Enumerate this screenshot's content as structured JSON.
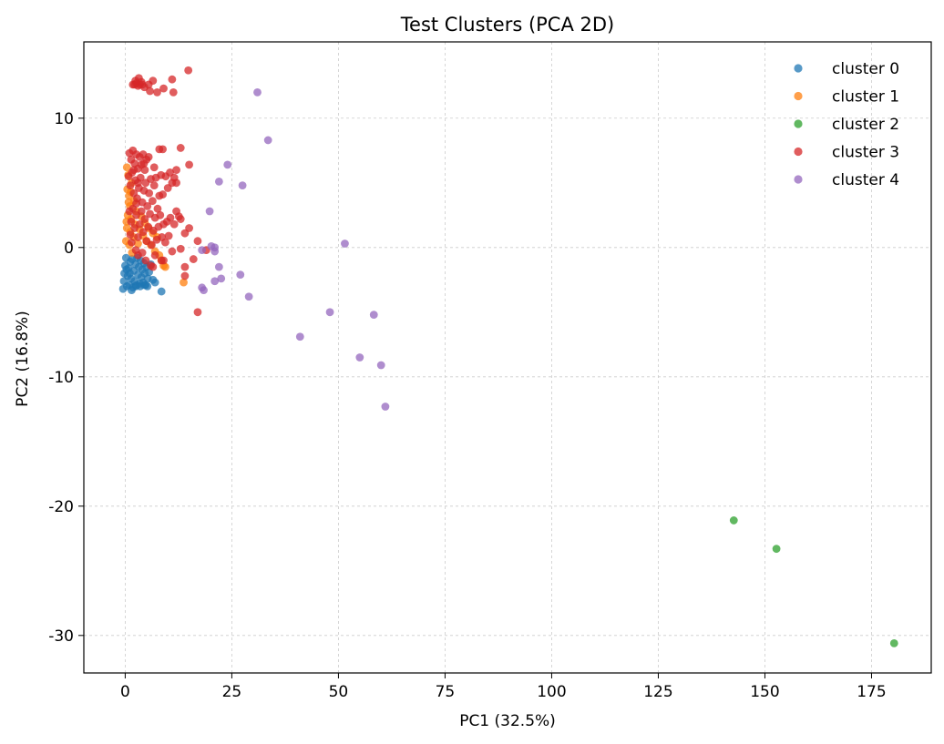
{
  "chart_data": {
    "type": "scatter",
    "title": "Test Clusters (PCA 2D)",
    "xlabel": "PC1 (32.5%)",
    "ylabel": "PC2 (16.8%)",
    "xlim": [
      -9.7,
      189.0
    ],
    "ylim": [
      -32.9,
      15.9
    ],
    "xticks": [
      0,
      25,
      50,
      75,
      100,
      125,
      150,
      175
    ],
    "yticks": [
      10,
      0,
      -10,
      -20,
      -30
    ],
    "grid": true,
    "legend": "top-right",
    "series": [
      {
        "name": "cluster 0",
        "color": "#1f77b4",
        "points": [
          [
            -0.5,
            -3.2
          ],
          [
            -0.3,
            -2.6
          ],
          [
            -0.2,
            -2.0
          ],
          [
            0,
            -1.4
          ],
          [
            0.2,
            -0.8
          ],
          [
            0.4,
            -3.0
          ],
          [
            0.6,
            -2.2
          ],
          [
            0.8,
            -1.6
          ],
          [
            1.0,
            -2.9
          ],
          [
            1.2,
            -1.1
          ],
          [
            1.4,
            -2.4
          ],
          [
            1.6,
            -0.9
          ],
          [
            1.8,
            -3.1
          ],
          [
            2.0,
            -1.8
          ],
          [
            2.2,
            -2.6
          ],
          [
            2.4,
            -1.3
          ],
          [
            2.6,
            -2.9
          ],
          [
            2.8,
            -0.8
          ],
          [
            3.0,
            -2.1
          ],
          [
            3.2,
            -1.5
          ],
          [
            3.4,
            -2.8
          ],
          [
            3.6,
            -1.0
          ],
          [
            3.8,
            -2.3
          ],
          [
            4.0,
            -1.7
          ],
          [
            4.2,
            -2.7
          ],
          [
            4.4,
            -1.2
          ],
          [
            4.6,
            -2.0
          ],
          [
            4.8,
            -2.9
          ],
          [
            5.0,
            -1.5
          ],
          [
            5.3,
            -2.4
          ],
          [
            5.6,
            -1.9
          ],
          [
            6.0,
            -1.3
          ],
          [
            6.5,
            -2.5
          ],
          [
            7.0,
            -2.7
          ],
          [
            8.5,
            -3.4
          ],
          [
            1.5,
            -3.3
          ],
          [
            2.5,
            -3.0
          ],
          [
            0.3,
            -1.7
          ],
          [
            1.1,
            -2.0
          ],
          [
            3.5,
            -3.0
          ],
          [
            4.5,
            -2.9
          ],
          [
            5.2,
            -3.0
          ]
        ]
      },
      {
        "name": "cluster 1",
        "color": "#ff7f0e",
        "points": [
          [
            0.2,
            0.5
          ],
          [
            0.4,
            1.5
          ],
          [
            0.6,
            2.5
          ],
          [
            0.8,
            3.5
          ],
          [
            0.5,
            4.5
          ],
          [
            0.7,
            5.6
          ],
          [
            0.4,
            6.2
          ],
          [
            1.0,
            0.2
          ],
          [
            1.2,
            1.2
          ],
          [
            1.4,
            2.2
          ],
          [
            1.1,
            3.2
          ],
          [
            1.3,
            4.3
          ],
          [
            1.6,
            -0.4
          ],
          [
            2.0,
            0.8
          ],
          [
            2.3,
            1.8
          ],
          [
            2.6,
            2.8
          ],
          [
            3.0,
            0.3
          ],
          [
            3.4,
            1.4
          ],
          [
            3.8,
            2.4
          ],
          [
            4.2,
            0.9
          ],
          [
            4.6,
            1.9
          ],
          [
            5.0,
            0.5
          ],
          [
            5.5,
            1.5
          ],
          [
            6.0,
            0.2
          ],
          [
            6.5,
            1.1
          ],
          [
            7.0,
            -0.3
          ],
          [
            7.5,
            0.8
          ],
          [
            8.0,
            -0.6
          ],
          [
            8.5,
            -1.0
          ],
          [
            9.0,
            -1.4
          ],
          [
            9.4,
            -1.5
          ],
          [
            13.7,
            -2.7
          ],
          [
            0.3,
            2.0
          ],
          [
            0.9,
            4.0
          ],
          [
            1.5,
            5.0
          ],
          [
            2.1,
            3.6
          ]
        ]
      },
      {
        "name": "cluster 2",
        "color": "#2ca02c",
        "points": [
          [
            142.7,
            -21.1
          ],
          [
            152.7,
            -23.3
          ],
          [
            180.3,
            -30.6
          ]
        ]
      },
      {
        "name": "cluster 3",
        "color": "#d62728",
        "points": [
          [
            1.8,
            12.6
          ],
          [
            2.2,
            12.6
          ],
          [
            2.6,
            12.7
          ],
          [
            3.0,
            12.5
          ],
          [
            3.4,
            12.6
          ],
          [
            3.8,
            12.8
          ],
          [
            2.4,
            12.9
          ],
          [
            3.2,
            13.1
          ],
          [
            4.0,
            12.6
          ],
          [
            4.5,
            12.4
          ],
          [
            5.5,
            12.6
          ],
          [
            6.5,
            12.9
          ],
          [
            7.5,
            12.0
          ],
          [
            9.0,
            12.3
          ],
          [
            11.0,
            13.0
          ],
          [
            11.3,
            12.0
          ],
          [
            14.8,
            13.7
          ],
          [
            5.8,
            12.1
          ],
          [
            1.0,
            7.3
          ],
          [
            1.4,
            6.8
          ],
          [
            1.8,
            7.5
          ],
          [
            2.2,
            6.5
          ],
          [
            2.6,
            7.2
          ],
          [
            3.0,
            6.1
          ],
          [
            3.4,
            7.0
          ],
          [
            3.8,
            6.4
          ],
          [
            4.2,
            7.2
          ],
          [
            4.6,
            6.0
          ],
          [
            5.0,
            6.8
          ],
          [
            0.8,
            5.5
          ],
          [
            1.2,
            4.8
          ],
          [
            1.6,
            5.8
          ],
          [
            2.0,
            4.2
          ],
          [
            2.4,
            5.2
          ],
          [
            2.8,
            3.8
          ],
          [
            3.2,
            4.6
          ],
          [
            3.6,
            5.4
          ],
          [
            4.0,
            3.5
          ],
          [
            4.4,
            4.4
          ],
          [
            4.8,
            5.0
          ],
          [
            5.2,
            3.2
          ],
          [
            5.6,
            4.2
          ],
          [
            6.0,
            5.3
          ],
          [
            6.4,
            3.6
          ],
          [
            6.8,
            4.8
          ],
          [
            7.2,
            5.4
          ],
          [
            7.6,
            3.0
          ],
          [
            8.0,
            4.0
          ],
          [
            8.4,
            5.6
          ],
          [
            8.8,
            4.1
          ],
          [
            9.5,
            5.5
          ],
          [
            10.0,
            4.6
          ],
          [
            10.5,
            5.8
          ],
          [
            11.0,
            5.0
          ],
          [
            11.5,
            5.4
          ],
          [
            12.0,
            6.0
          ],
          [
            13.0,
            7.7
          ],
          [
            15.0,
            6.4
          ],
          [
            8.0,
            7.6
          ],
          [
            8.8,
            7.6
          ],
          [
            12.0,
            5.0
          ],
          [
            1.0,
            2.8
          ],
          [
            1.4,
            2.0
          ],
          [
            1.8,
            3.0
          ],
          [
            2.2,
            1.5
          ],
          [
            2.6,
            2.5
          ],
          [
            3.0,
            0.8
          ],
          [
            3.4,
            1.8
          ],
          [
            3.8,
            2.8
          ],
          [
            4.2,
            1.2
          ],
          [
            4.6,
            2.2
          ],
          [
            5.0,
            0.5
          ],
          [
            5.4,
            1.6
          ],
          [
            5.8,
            2.6
          ],
          [
            6.2,
            0.2
          ],
          [
            6.6,
            1.3
          ],
          [
            7.0,
            2.3
          ],
          [
            7.4,
            0.6
          ],
          [
            7.8,
            1.6
          ],
          [
            8.2,
            2.5
          ],
          [
            8.6,
            0.8
          ],
          [
            9.0,
            1.8
          ],
          [
            9.4,
            0.4
          ],
          [
            9.8,
            2.0
          ],
          [
            10.2,
            0.9
          ],
          [
            10.6,
            2.3
          ],
          [
            11.5,
            1.8
          ],
          [
            12.0,
            2.8
          ],
          [
            12.6,
            2.4
          ],
          [
            13.0,
            2.2
          ],
          [
            14.0,
            1.1
          ],
          [
            15.0,
            1.5
          ],
          [
            17.0,
            0.5
          ],
          [
            19.0,
            -0.2
          ],
          [
            13.0,
            -0.1
          ],
          [
            11.0,
            -0.3
          ],
          [
            7.0,
            -0.6
          ],
          [
            9.0,
            -1.0
          ],
          [
            6.0,
            -1.4
          ],
          [
            4.0,
            -0.4
          ],
          [
            2.5,
            -0.2
          ],
          [
            14.0,
            -1.5
          ],
          [
            14.0,
            -2.2
          ],
          [
            17.0,
            -5.0
          ],
          [
            16.0,
            -0.9
          ],
          [
            8.5,
            -1.0
          ],
          [
            6.5,
            -1.5
          ],
          [
            4.8,
            -1.0
          ],
          [
            3.0,
            -0.6
          ],
          [
            1.5,
            0.4
          ],
          [
            2.0,
            6.0
          ],
          [
            3.0,
            5.0
          ],
          [
            1.2,
            1.0
          ],
          [
            2.6,
            3.4
          ],
          [
            4.4,
            6.5
          ],
          [
            5.5,
            7.0
          ],
          [
            6.8,
            6.2
          ]
        ]
      },
      {
        "name": "cluster 4",
        "color": "#9467bd",
        "points": [
          [
            31.0,
            12.0
          ],
          [
            33.5,
            8.3
          ],
          [
            24.0,
            6.4
          ],
          [
            22.0,
            5.1
          ],
          [
            27.5,
            4.8
          ],
          [
            19.8,
            2.8
          ],
          [
            20.2,
            0.1
          ],
          [
            21.0,
            -0.3
          ],
          [
            18.0,
            -0.2
          ],
          [
            21.0,
            0.0
          ],
          [
            22.0,
            -1.5
          ],
          [
            27.0,
            -2.1
          ],
          [
            21.0,
            -2.6
          ],
          [
            22.5,
            -2.4
          ],
          [
            18.0,
            -3.1
          ],
          [
            18.4,
            -3.3
          ],
          [
            29.0,
            -3.8
          ],
          [
            51.5,
            0.3
          ],
          [
            48.0,
            -5.0
          ],
          [
            58.3,
            -5.2
          ],
          [
            41.0,
            -6.9
          ],
          [
            55.0,
            -8.5
          ],
          [
            60.0,
            -9.1
          ],
          [
            61.0,
            -12.3
          ]
        ]
      }
    ]
  }
}
